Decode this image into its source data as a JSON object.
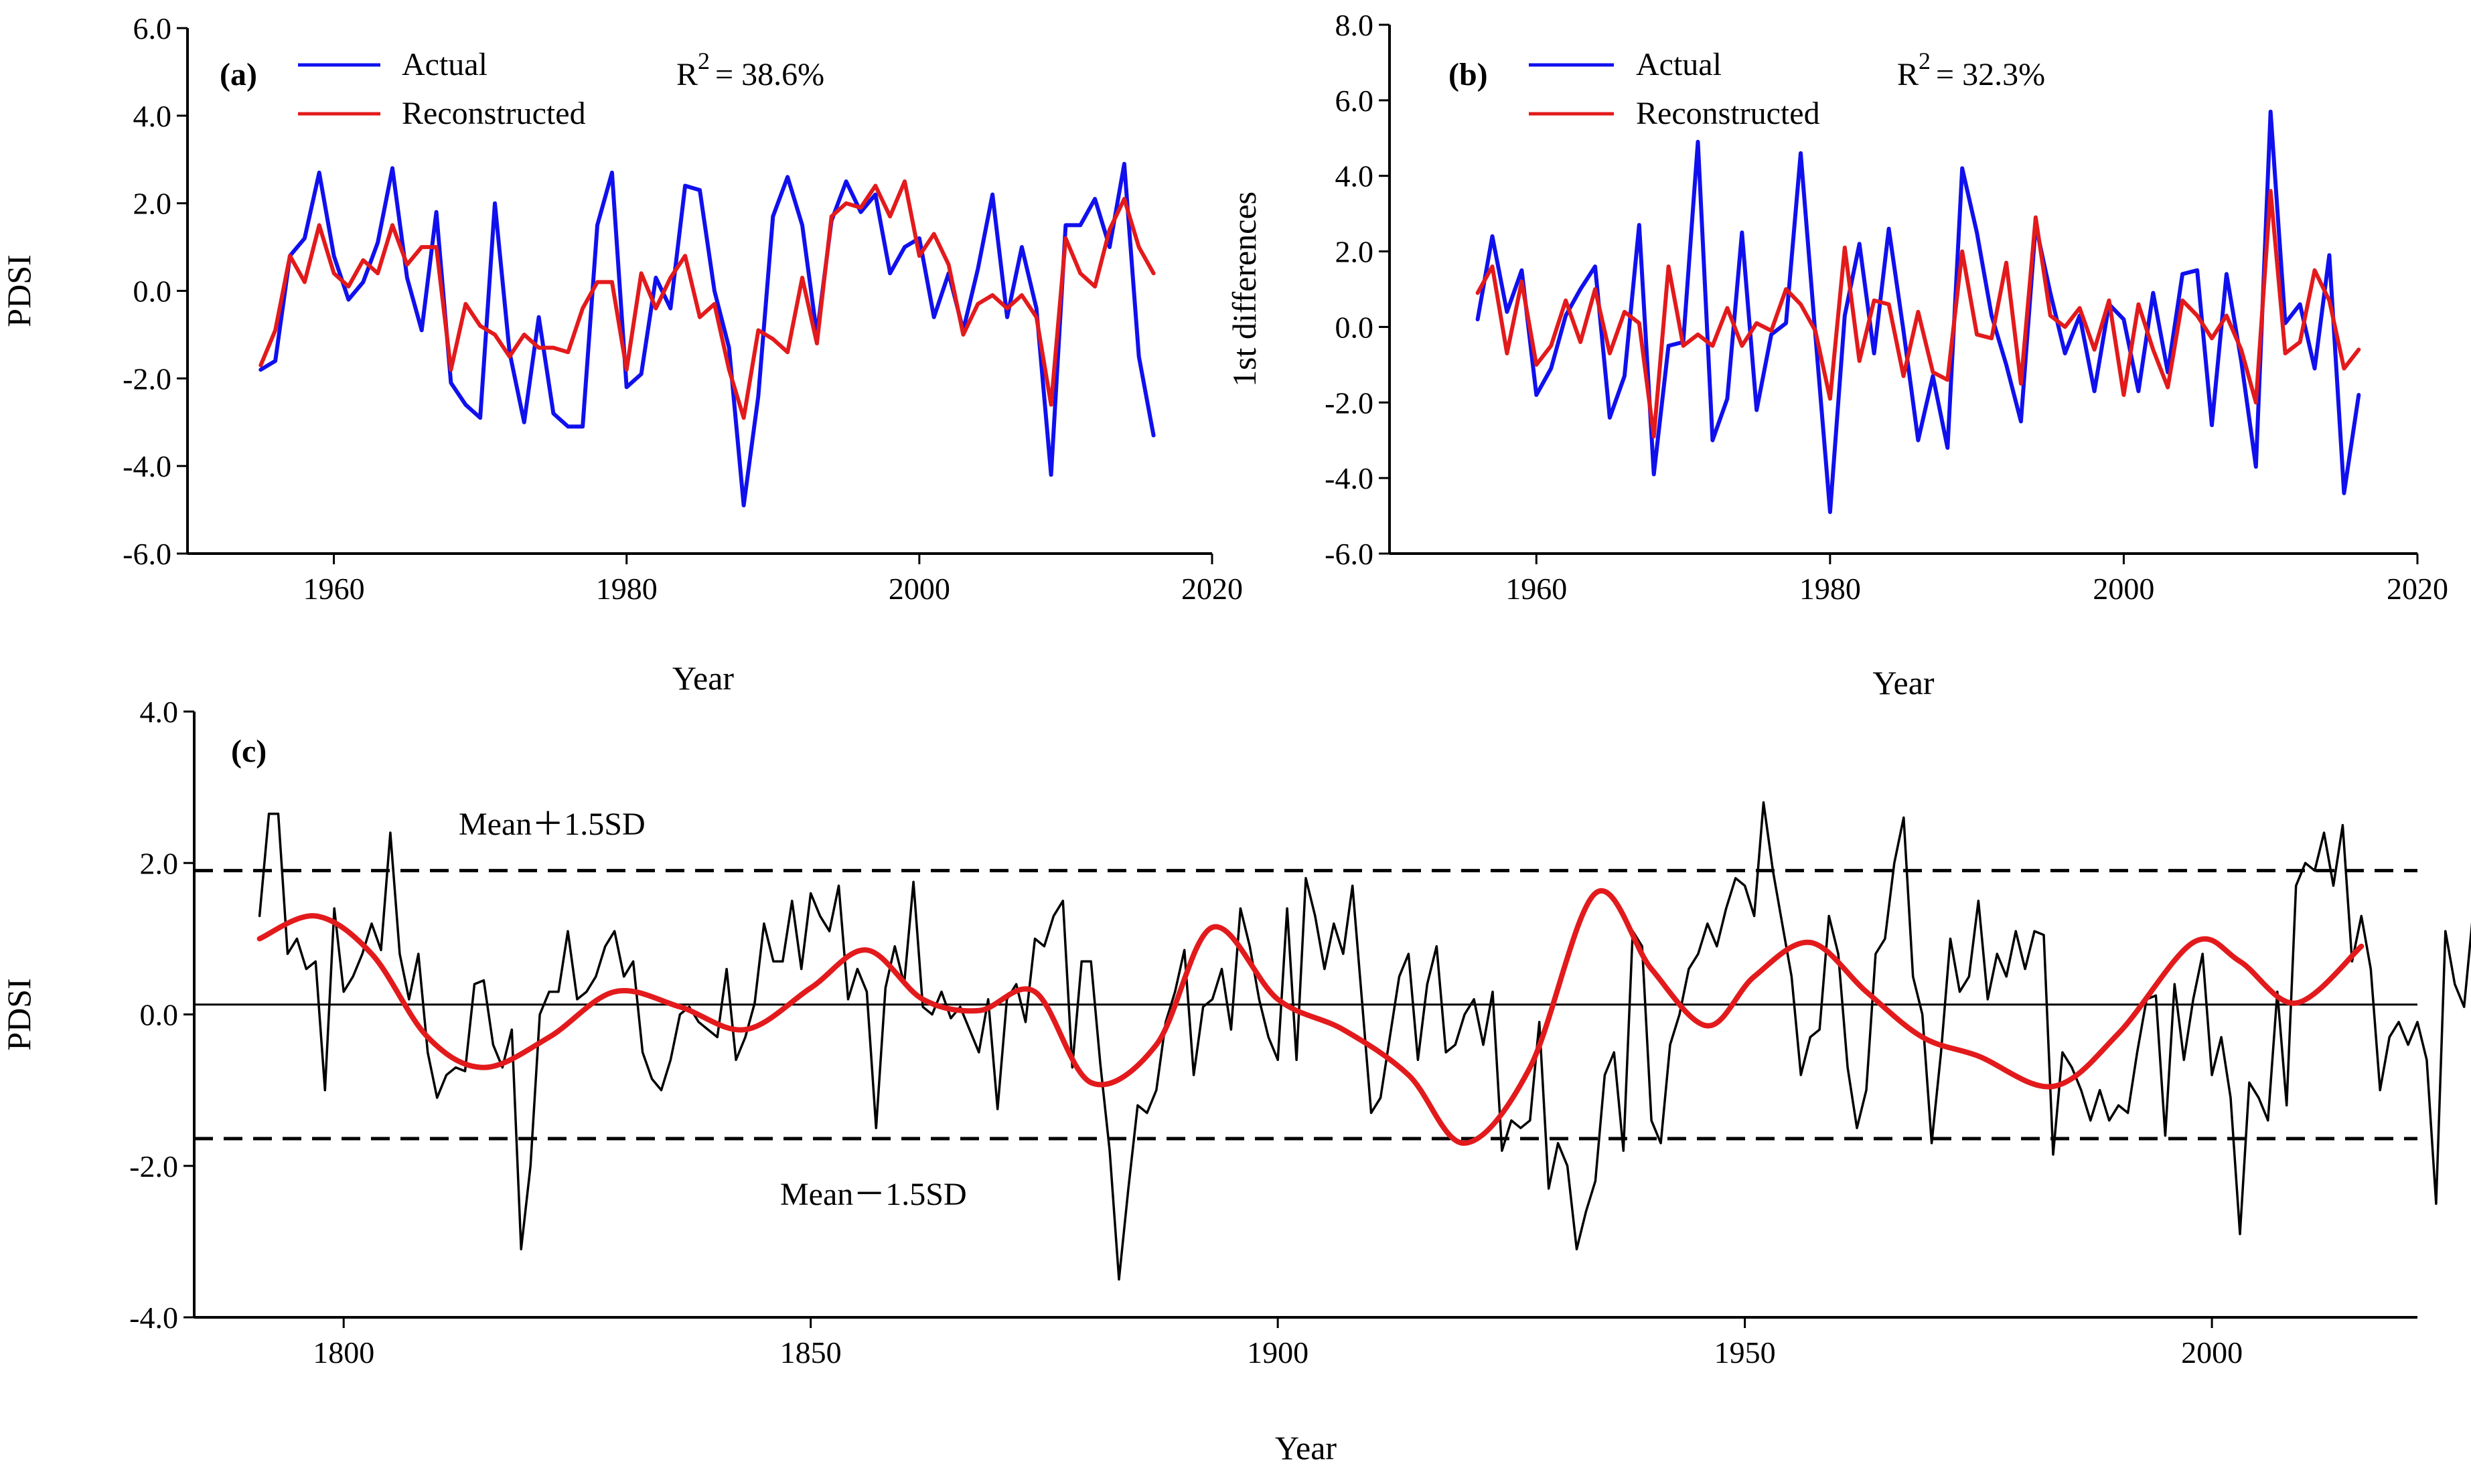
{
  "chart_data": [
    {
      "type": "line",
      "panel_label": "(a)",
      "xlabel": "Year",
      "ylabel": "PDSI",
      "xlim": [
        1950,
        2020
      ],
      "ylim": [
        -6.0,
        6.0
      ],
      "xticks": [
        1960,
        1980,
        2000,
        2020
      ],
      "yticks": [
        -6.0,
        -4.0,
        -2.0,
        0.0,
        2.0,
        4.0,
        6.0
      ],
      "x_start": 1955,
      "r2_label": "R",
      "r2_sup": "2",
      "r2_value": "= 38.6%",
      "legend_position": "top-left",
      "series": [
        {
          "name": "Actual",
          "color": "#1010ee",
          "values": [
            -1.8,
            -1.6,
            0.8,
            1.2,
            2.7,
            0.8,
            -0.2,
            0.2,
            1.1,
            2.8,
            0.3,
            -0.9,
            1.8,
            -2.1,
            -2.6,
            -2.9,
            2.0,
            -1.4,
            -3.0,
            -0.6,
            -2.8,
            -3.1,
            -3.1,
            1.5,
            2.7,
            -2.2,
            -1.9,
            0.3,
            -0.4,
            2.4,
            2.3,
            0.0,
            -1.3,
            -4.9,
            -2.4,
            1.7,
            2.6,
            1.5,
            -1.0,
            1.6,
            2.5,
            1.8,
            2.2,
            0.4,
            1.0,
            1.2,
            -0.6,
            0.4,
            -0.9,
            0.5,
            2.2,
            -0.6,
            1.0,
            -0.4,
            -4.2,
            1.5,
            1.5,
            2.1,
            1.0,
            2.9,
            -1.5,
            -3.3
          ]
        },
        {
          "name": "Reconstructed",
          "color": "#e31a1c",
          "values": [
            -1.7,
            -0.9,
            0.8,
            0.2,
            1.5,
            0.4,
            0.1,
            0.7,
            0.4,
            1.5,
            0.6,
            1.0,
            1.0,
            -1.8,
            -0.3,
            -0.8,
            -1.0,
            -1.5,
            -1.0,
            -1.3,
            -1.3,
            -1.4,
            -0.4,
            0.2,
            0.2,
            -1.8,
            0.4,
            -0.4,
            0.3,
            0.8,
            -0.6,
            -0.3,
            -1.8,
            -2.9,
            -0.9,
            -1.1,
            -1.4,
            0.3,
            -1.2,
            1.7,
            2.0,
            1.9,
            2.4,
            1.7,
            2.5,
            0.8,
            1.3,
            0.6,
            -1.0,
            -0.3,
            -0.1,
            -0.4,
            -0.1,
            -0.6,
            -2.6,
            1.2,
            0.4,
            0.1,
            1.4,
            2.1,
            1.0,
            0.4
          ]
        }
      ]
    },
    {
      "type": "line",
      "panel_label": "(b)",
      "xlabel": "Year",
      "ylabel": "1st differences",
      "xlim": [
        1950,
        2020
      ],
      "ylim": [
        -6.0,
        8.0
      ],
      "xticks": [
        1960,
        1980,
        2000,
        2020
      ],
      "yticks": [
        -6.0,
        -4.0,
        -2.0,
        0.0,
        2.0,
        4.0,
        6.0,
        8.0
      ],
      "x_start": 1956,
      "r2_label": "R",
      "r2_sup": "2",
      "r2_value": "= 32.3%",
      "legend_position": "top-left",
      "series": [
        {
          "name": "Actual",
          "color": "#1010ee",
          "values": [
            0.2,
            2.4,
            0.4,
            1.5,
            -1.8,
            -1.1,
            0.3,
            1.0,
            1.6,
            -2.4,
            -1.3,
            2.7,
            -3.9,
            -0.5,
            -0.4,
            4.9,
            -3.0,
            -1.9,
            2.5,
            -2.2,
            -0.2,
            0.1,
            4.6,
            -0.2,
            -4.9,
            0.3,
            2.2,
            -0.7,
            2.6,
            -0.1,
            -3.0,
            -1.3,
            -3.2,
            4.2,
            2.5,
            0.3,
            -1.0,
            -2.5,
            2.7,
            0.9,
            -0.7,
            0.3,
            -1.7,
            0.6,
            0.2,
            -1.7,
            0.9,
            -1.2,
            1.4,
            1.5,
            -2.6,
            1.4,
            -0.9,
            -3.7,
            5.7,
            0.1,
            0.6,
            -1.1,
            1.9,
            -4.4,
            -1.8
          ]
        },
        {
          "name": "Reconstructed",
          "color": "#e31a1c",
          "values": [
            0.9,
            1.6,
            -0.7,
            1.2,
            -1.0,
            -0.5,
            0.7,
            -0.4,
            1.0,
            -0.7,
            0.4,
            0.1,
            -2.9,
            1.6,
            -0.5,
            -0.2,
            -0.5,
            0.5,
            -0.5,
            0.1,
            -0.1,
            1.0,
            0.6,
            -0.1,
            -1.9,
            2.1,
            -0.9,
            0.7,
            0.6,
            -1.3,
            0.4,
            -1.2,
            -1.4,
            2.0,
            -0.2,
            -0.3,
            1.7,
            -1.5,
            2.9,
            0.3,
            0.0,
            0.5,
            -0.6,
            0.7,
            -1.8,
            0.6,
            -0.6,
            -1.6,
            0.7,
            0.3,
            -0.3,
            0.3,
            -0.6,
            -2.0,
            3.6,
            -0.7,
            -0.4,
            1.5,
            0.7,
            -1.1,
            -0.6
          ]
        }
      ]
    },
    {
      "type": "line",
      "panel_label": "(c)",
      "xlabel": "Year",
      "ylabel": "PDSI",
      "xlim": [
        1784,
        2022
      ],
      "ylim": [
        -4.0,
        4.0
      ],
      "xticks": [
        1800,
        1850,
        1900,
        1950,
        2000
      ],
      "yticks": [
        -4.0,
        -2.0,
        0.0,
        2.0,
        4.0
      ],
      "mean": 0.13,
      "upper": 1.9,
      "lower": -1.64,
      "upper_label": "Mean＋1.5SD",
      "lower_label": "Mean－1.5SD",
      "annual": {
        "color": "#000000",
        "x_start": 1791,
        "values": [
          1.3,
          2.65,
          2.65,
          0.8,
          1.0,
          0.6,
          0.7,
          -1.0,
          1.4,
          0.3,
          0.5,
          0.8,
          1.2,
          0.85,
          2.4,
          0.8,
          0.2,
          0.8,
          -0.5,
          -1.1,
          -0.8,
          -0.7,
          -0.75,
          0.4,
          0.45,
          -0.4,
          -0.7,
          -0.2,
          -3.1,
          -2.0,
          0.0,
          0.3,
          0.3,
          1.1,
          0.2,
          0.3,
          0.5,
          0.9,
          1.1,
          0.5,
          0.7,
          -0.5,
          -0.85,
          -1.0,
          -0.6,
          0.0,
          0.1,
          -0.1,
          -0.2,
          -0.3,
          0.6,
          -0.6,
          -0.3,
          0.15,
          1.2,
          0.7,
          0.7,
          1.5,
          0.6,
          1.6,
          1.3,
          1.1,
          1.7,
          0.2,
          0.6,
          0.3,
          -1.5,
          0.35,
          0.9,
          0.4,
          1.75,
          0.1,
          0.0,
          0.3,
          -0.05,
          0.1,
          -0.2,
          -0.5,
          0.2,
          -1.25,
          0.2,
          0.4,
          -0.1,
          1.0,
          0.9,
          1.3,
          1.5,
          -0.7,
          0.7,
          0.7,
          -0.65,
          -1.8,
          -3.5,
          -2.3,
          -1.2,
          -1.3,
          -1.0,
          -0.1,
          0.3,
          0.85,
          -0.8,
          0.1,
          0.2,
          0.6,
          -0.2,
          1.4,
          0.9,
          0.2,
          -0.3,
          -0.6,
          1.4,
          -0.6,
          1.8,
          1.3,
          0.6,
          1.2,
          0.8,
          1.7,
          0.2,
          -1.3,
          -1.1,
          -0.3,
          0.5,
          0.8,
          -0.6,
          0.4,
          0.9,
          -0.5,
          -0.4,
          0.0,
          0.2,
          -0.4,
          0.3,
          -1.8,
          -1.4,
          -1.5,
          -1.4,
          -0.1,
          -2.3,
          -1.7,
          -2.0,
          -3.1,
          -2.6,
          -2.2,
          -0.8,
          -0.5,
          -1.8,
          1.1,
          0.9,
          -1.4,
          -1.7,
          -0.4,
          0.0,
          0.6,
          0.8,
          1.2,
          0.9,
          1.4,
          1.8,
          1.7,
          1.3,
          2.8,
          1.9,
          1.2,
          0.5,
          -0.8,
          -0.3,
          -0.2,
          1.3,
          0.8,
          -0.7,
          -1.5,
          -1.0,
          0.8,
          1.0,
          2.0,
          2.6,
          0.5,
          0.0,
          -1.7,
          -0.5,
          1.0,
          0.3,
          0.5,
          1.5,
          0.2,
          0.8,
          0.5,
          1.1,
          0.6,
          1.1,
          1.05,
          -1.85,
          -0.5,
          -0.7,
          -1.0,
          -1.4,
          -1.0,
          -1.4,
          -1.2,
          -1.3,
          -0.5,
          0.2,
          0.25,
          -1.6,
          0.4,
          -0.6,
          0.2,
          0.8,
          -0.8,
          -0.3,
          -1.1,
          -2.9,
          -0.9,
          -1.1,
          -1.4,
          0.3,
          -1.2,
          1.7,
          2.0,
          1.9,
          2.4,
          1.7,
          2.5,
          0.7,
          1.3,
          0.6,
          -1.0,
          -0.3,
          -0.1,
          -0.4,
          -0.1,
          -0.6,
          -2.5,
          1.1,
          0.4,
          0.1,
          1.4,
          2.1,
          1.0,
          0.4
        ]
      },
      "smooth": {
        "color": "#e31a1c",
        "x": [
          1791,
          1797,
          1803,
          1809,
          1815,
          1822,
          1829,
          1836,
          1843,
          1850,
          1856,
          1862,
          1868,
          1874,
          1880,
          1887,
          1893,
          1900,
          1907,
          1914,
          1920,
          1927,
          1934,
          1940,
          1946,
          1951,
          1957,
          1963,
          1969,
          1975,
          1983,
          1990,
          1998,
          2003,
          2009,
          2016
        ],
        "values": [
          1.0,
          1.3,
          0.8,
          -0.3,
          -0.7,
          -0.3,
          0.3,
          0.1,
          -0.2,
          0.35,
          0.85,
          0.2,
          0.05,
          0.3,
          -0.9,
          -0.4,
          1.15,
          0.2,
          -0.2,
          -0.8,
          -1.7,
          -0.7,
          1.6,
          0.6,
          -0.15,
          0.5,
          0.95,
          0.3,
          -0.3,
          -0.55,
          -0.95,
          -0.25,
          0.95,
          0.7,
          0.15,
          0.9
        ]
      }
    }
  ]
}
